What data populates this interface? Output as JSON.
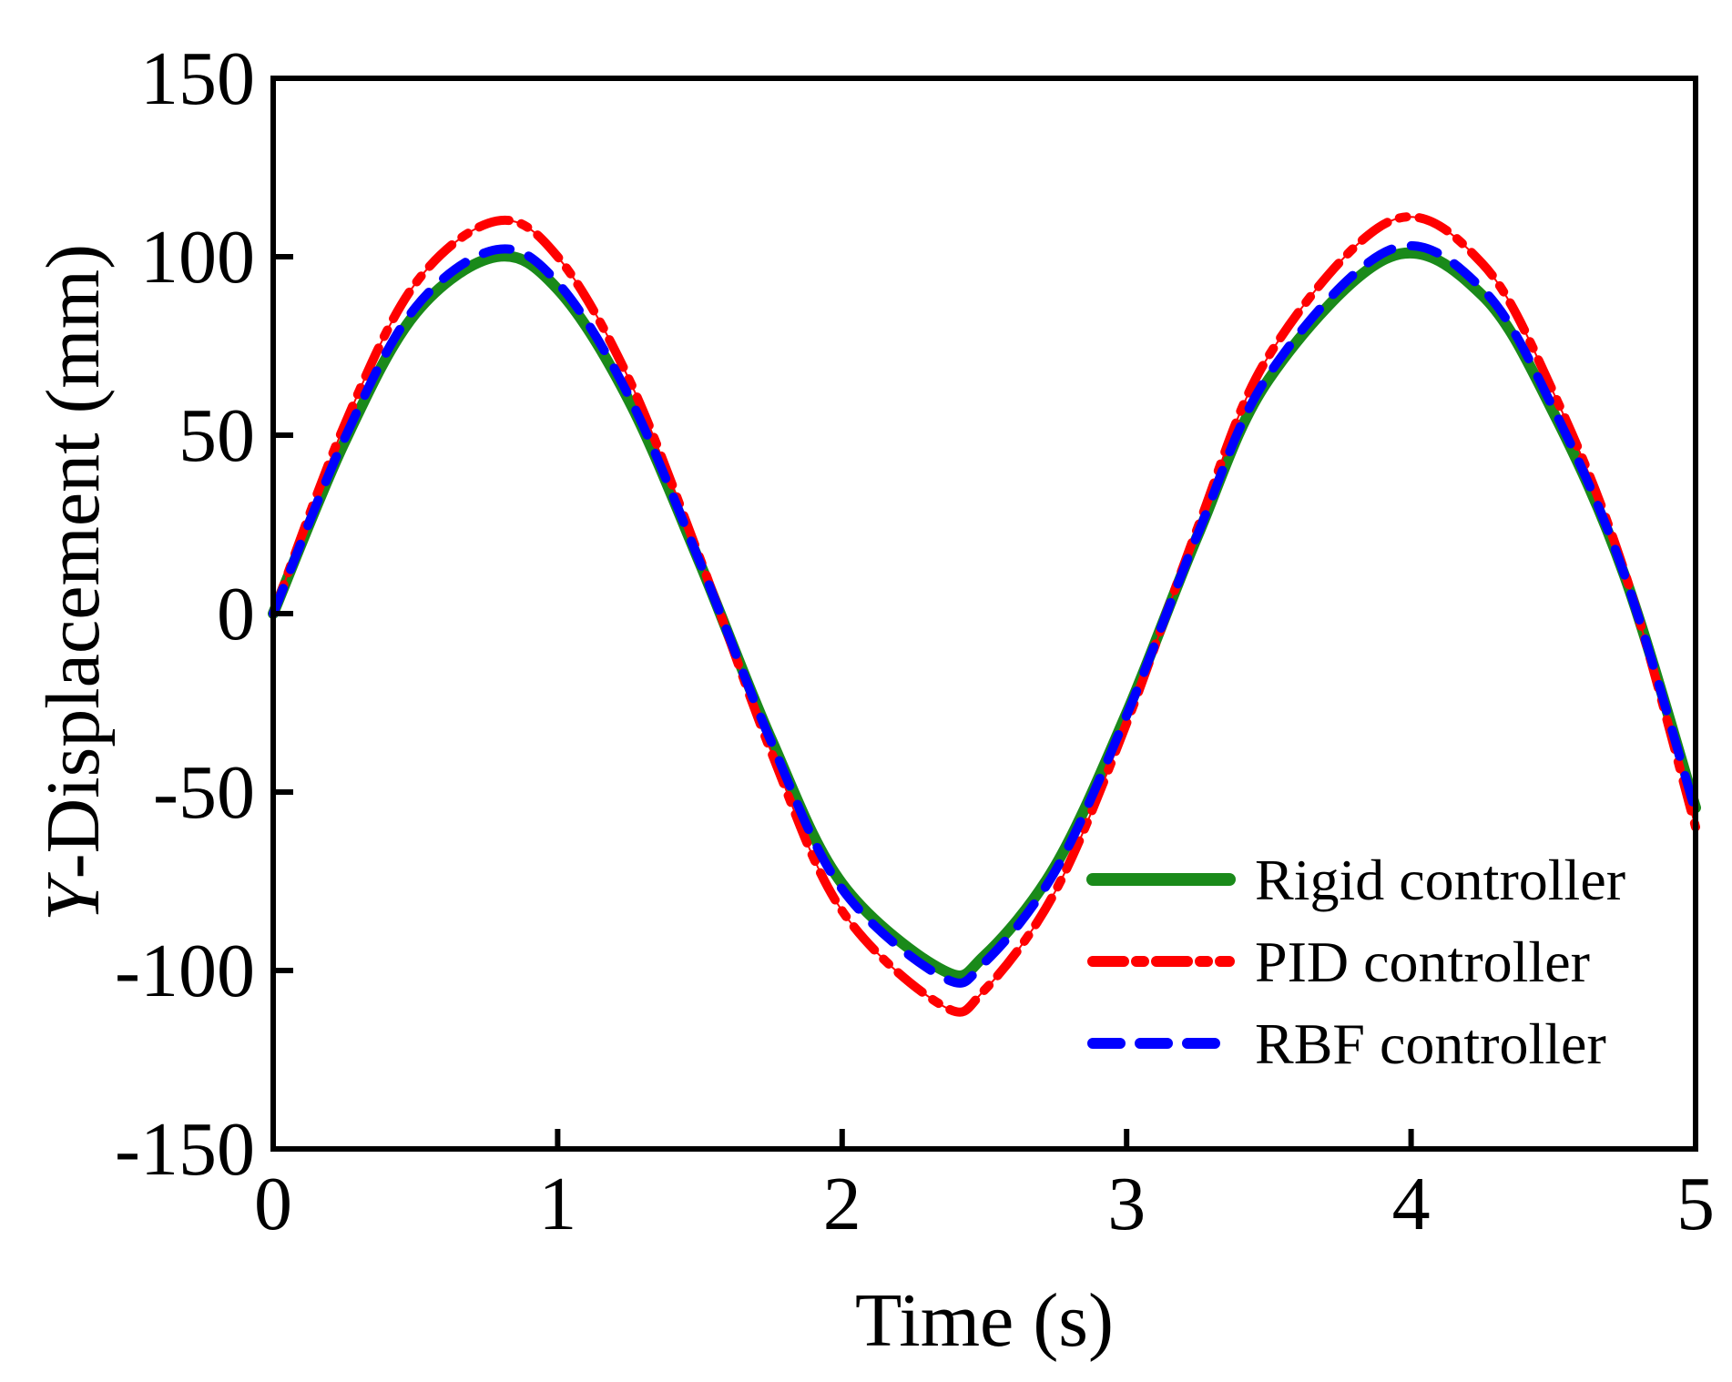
{
  "chart_data": {
    "type": "line",
    "title": "",
    "xlabel": "Time (s)",
    "ylabel_italic": "Y",
    "ylabel_rest": "-Displacement (mm)",
    "xlim": [
      0,
      5
    ],
    "ylim": [
      -150,
      150
    ],
    "x_ticks": [
      0,
      1,
      2,
      3,
      4,
      5
    ],
    "x_tick_labels": [
      "0",
      "1",
      "2",
      "3",
      "4",
      "5"
    ],
    "y_ticks": [
      150,
      100,
      50,
      0,
      -50,
      -100,
      -150
    ],
    "y_tick_labels": [
      "150",
      "100",
      "50",
      "0",
      "-50",
      "-100",
      "-150"
    ],
    "grid": false,
    "legend_position": "bottom-right",
    "x": [
      0,
      0.25,
      0.5,
      0.785,
      1.0,
      1.25,
      1.5,
      1.75,
      2.0,
      2.356,
      2.5,
      2.75,
      3.0,
      3.25,
      3.5,
      3.927,
      4.25,
      4.5,
      4.75,
      5.0
    ],
    "series": [
      {
        "name": "Rigid controller",
        "color": "#1a8a1a",
        "style": "solid",
        "values": [
          0,
          47.9,
          84.1,
          100,
          90.9,
          59.8,
          14.1,
          -35.1,
          -75.7,
          -100,
          -95.9,
          -70.6,
          -27.9,
          21.9,
          65.7,
          100,
          89.2,
          56.4,
          10.7,
          -54.4
        ]
      },
      {
        "name": "PID controller",
        "color": "#ff0000",
        "style": "dash-dot",
        "values": [
          0,
          52.7,
          92.5,
          110,
          100,
          65.8,
          15.5,
          -38.6,
          -83.3,
          -110,
          -105.5,
          -77.7,
          -30.7,
          24.1,
          72.3,
          110,
          98.1,
          62.0,
          11.8,
          -59.8
        ]
      },
      {
        "name": "RBF controller",
        "color": "#0000ff",
        "style": "dashed",
        "values": [
          0,
          48.9,
          85.8,
          102,
          92.7,
          61.0,
          14.4,
          -35.8,
          -77.2,
          -102,
          -97.8,
          -72.0,
          -28.5,
          22.3,
          67.0,
          102,
          91.0,
          57.5,
          10.9,
          -55.5
        ]
      }
    ]
  }
}
